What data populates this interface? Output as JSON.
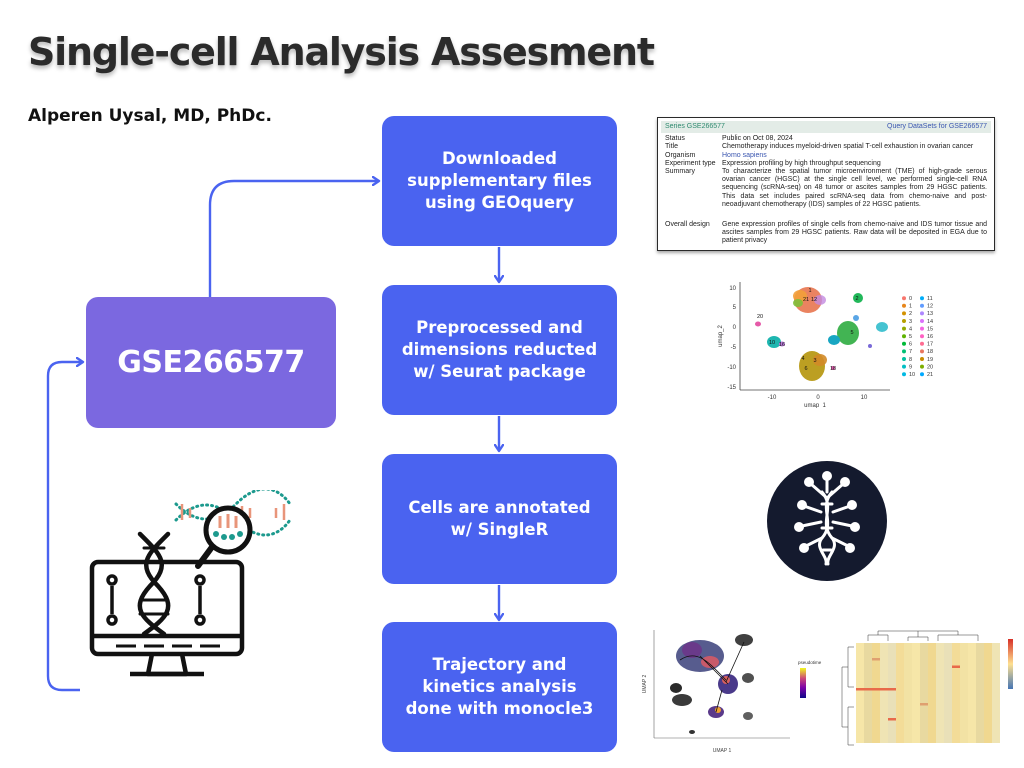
{
  "title": "Single-cell Analysis Assesment",
  "author": "Alperen Uysal, MD, PhDc.",
  "dataset_box": "GSE266577",
  "steps": [
    {
      "label": "Downloaded supplementary files using GEOquery"
    },
    {
      "label": "Preprocessed and dimensions reducted w/ Seurat package"
    },
    {
      "label": "Cells are annotated w/ SingleR"
    },
    {
      "label": "Trajectory and kinetics analysis done with monocle3"
    }
  ],
  "geo_record": {
    "series": "Series GSE266577",
    "query_link": "Query DataSets for GSE266577",
    "rows": [
      {
        "key": "Status",
        "value": "Public on Oct 08, 2024"
      },
      {
        "key": "Title",
        "value": "Chemotherapy induces myeloid-driven spatial T-cell exhaustion in ovarian cancer"
      },
      {
        "key": "Organism",
        "value": "Homo sapiens"
      },
      {
        "key": "Experiment type",
        "value": "Expression profiling by high throughput sequencing"
      },
      {
        "key": "Summary",
        "value": "To characterize the spatial tumor microenvironment (TME) of high-grade serous ovarian cancer (HGSC) at the single cell level, we performed single-cell RNA sequencing (scRNA-seq) on 48 tumor or ascites samples from 29 HGSC patients. This data set includes paired scRNA-seq data from chemo-naive and post-neoadjuvant chemotherapy (IDS) samples of 22 HGSC patients."
      },
      {
        "key": "Overall design",
        "value": "Gene expression profiles of single cells from chemo-naive and IDS tumor tissue and ascites samples from 29 HGSC patients. Raw data will be deposited in EGA due to patient privacy"
      }
    ]
  },
  "umap_plot": {
    "xlabel": "umap_1",
    "ylabel": "umap_2",
    "x_ticks": [
      "-10",
      "0",
      "10"
    ],
    "y_ticks": [
      "10",
      "5",
      "0",
      "-5",
      "-10",
      "-15"
    ],
    "legend": [
      "0",
      "1",
      "2",
      "3",
      "4",
      "5",
      "6",
      "7",
      "8",
      "9",
      "10",
      "11",
      "12",
      "13",
      "14",
      "15",
      "16",
      "17",
      "18",
      "19",
      "20",
      "21"
    ],
    "cluster_labels": [
      "1",
      "21",
      "12",
      "2",
      "20",
      "10",
      "16",
      "5",
      "3",
      "4",
      "6",
      "18"
    ]
  },
  "trajectory_plot": {
    "xlabel": "UMAP 1",
    "ylabel": "UMAP 2",
    "legend_title": "pseudotime"
  },
  "colors": {
    "step_box": "#4a63f0",
    "dataset_box": "#7b68e0",
    "connector": "#4a63f0",
    "dna_logo_bg": "#141a2e"
  }
}
